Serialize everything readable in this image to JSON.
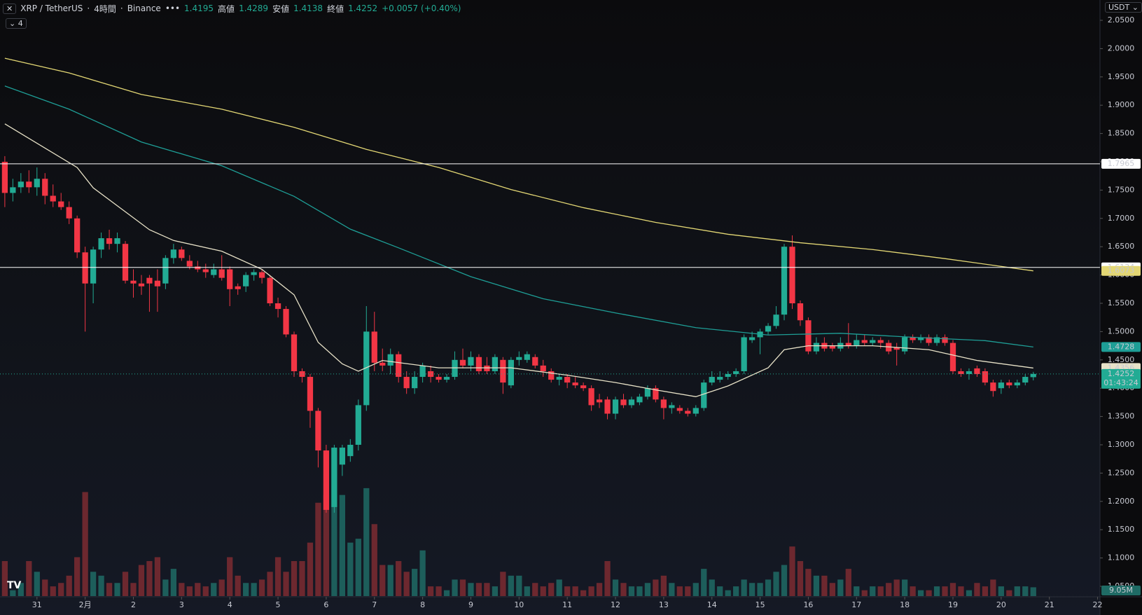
{
  "header": {
    "symbol": "XRP / TetherUS",
    "interval": "4時間",
    "exchange": "Binance",
    "high_label": "高値",
    "low_label": "安値",
    "close_label": "終値",
    "change": "+0.0057 (+0.40%)",
    "indicator_count": "4",
    "currency": "USDT",
    "countdown": "01:43:24",
    "last_volume_label": "9.05M"
  },
  "chart_data": {
    "type": "candlestick",
    "up_color": "#22ab94",
    "down_color": "#f23645",
    "volume_up_color": "#1f6b65",
    "volume_down_color": "#7d2b31",
    "ylim": [
      1.05,
      2.05
    ],
    "yticks": [
      {
        "value": 2.05,
        "label": "2.0500"
      },
      {
        "value": 2.0,
        "label": "2.0000"
      },
      {
        "value": 1.95,
        "label": "1.9500"
      },
      {
        "value": 1.9,
        "label": "1.9000"
      },
      {
        "value": 1.85,
        "label": "1.8500"
      },
      {
        "value": 1.8,
        "label": "1.8000"
      },
      {
        "value": 1.75,
        "label": "1.7500"
      },
      {
        "value": 1.7,
        "label": "1.7000"
      },
      {
        "value": 1.65,
        "label": "1.6500"
      },
      {
        "value": 1.6,
        "label": "1.6000"
      },
      {
        "value": 1.55,
        "label": "1.5500"
      },
      {
        "value": 1.5,
        "label": "1.5000"
      },
      {
        "value": 1.45,
        "label": "1.4500"
      },
      {
        "value": 1.4,
        "label": "1.4000"
      },
      {
        "value": 1.35,
        "label": "1.3500"
      },
      {
        "value": 1.3,
        "label": "1.3000"
      },
      {
        "value": 1.25,
        "label": "1.2500"
      },
      {
        "value": 1.2,
        "label": "1.2000"
      },
      {
        "value": 1.15,
        "label": "1.1500"
      },
      {
        "value": 1.1,
        "label": "1.1000"
      },
      {
        "value": 1.05,
        "label": "1.0500"
      }
    ],
    "xlim": [
      -0.6,
      136.3
    ],
    "xticks": [
      {
        "value": 4,
        "label": "31"
      },
      {
        "value": 10,
        "label": "2月"
      },
      {
        "value": 16,
        "label": "2"
      },
      {
        "value": 22,
        "label": "3"
      },
      {
        "value": 28,
        "label": "4"
      },
      {
        "value": 34,
        "label": "5"
      },
      {
        "value": 40,
        "label": "6"
      },
      {
        "value": 46,
        "label": "7"
      },
      {
        "value": 52,
        "label": "8"
      },
      {
        "value": 58,
        "label": "9"
      },
      {
        "value": 64,
        "label": "10"
      },
      {
        "value": 70,
        "label": "11"
      },
      {
        "value": 76,
        "label": "12"
      },
      {
        "value": 82,
        "label": "13"
      },
      {
        "value": 88,
        "label": "14"
      },
      {
        "value": 94,
        "label": "15"
      },
      {
        "value": 100,
        "label": "16"
      },
      {
        "value": 106,
        "label": "17"
      },
      {
        "value": 112,
        "label": "18"
      },
      {
        "value": 118,
        "label": "19"
      },
      {
        "value": 124,
        "label": "20"
      },
      {
        "value": 130,
        "label": "21"
      },
      {
        "value": 136,
        "label": "22"
      }
    ],
    "grid": false,
    "candles": [
      [
        1.8,
        1.81,
        1.72,
        1.745
      ],
      [
        1.745,
        1.77,
        1.73,
        1.755
      ],
      [
        1.755,
        1.78,
        1.745,
        1.765
      ],
      [
        1.765,
        1.785,
        1.745,
        1.755
      ],
      [
        1.755,
        1.79,
        1.74,
        1.77
      ],
      [
        1.77,
        1.78,
        1.725,
        1.74
      ],
      [
        1.74,
        1.76,
        1.72,
        1.73
      ],
      [
        1.73,
        1.745,
        1.715,
        1.72
      ],
      [
        1.72,
        1.73,
        1.69,
        1.7
      ],
      [
        1.7,
        1.705,
        1.63,
        1.64
      ],
      [
        1.64,
        1.65,
        1.5,
        1.585
      ],
      [
        1.585,
        1.65,
        1.55,
        1.645
      ],
      [
        1.645,
        1.675,
        1.63,
        1.665
      ],
      [
        1.665,
        1.68,
        1.645,
        1.655
      ],
      [
        1.655,
        1.675,
        1.64,
        1.665
      ],
      [
        1.655,
        1.66,
        1.585,
        1.59
      ],
      [
        1.59,
        1.61,
        1.56,
        1.585
      ],
      [
        1.585,
        1.6,
        1.565,
        1.58
      ],
      [
        1.595,
        1.6,
        1.535,
        1.585
      ],
      [
        1.59,
        1.61,
        1.535,
        1.58
      ],
      [
        1.585,
        1.635,
        1.575,
        1.63
      ],
      [
        1.63,
        1.655,
        1.62,
        1.645
      ],
      [
        1.645,
        1.65,
        1.625,
        1.63
      ],
      [
        1.625,
        1.635,
        1.61,
        1.615
      ],
      [
        1.615,
        1.625,
        1.605,
        1.61
      ],
      [
        1.61,
        1.62,
        1.595,
        1.605
      ],
      [
        1.6,
        1.62,
        1.595,
        1.61
      ],
      [
        1.61,
        1.635,
        1.59,
        1.595
      ],
      [
        1.61,
        1.615,
        1.545,
        1.575
      ],
      [
        1.58,
        1.585,
        1.565,
        1.575
      ],
      [
        1.58,
        1.605,
        1.57,
        1.6
      ],
      [
        1.6,
        1.61,
        1.59,
        1.605
      ],
      [
        1.605,
        1.61,
        1.585,
        1.595
      ],
      [
        1.595,
        1.6,
        1.545,
        1.55
      ],
      [
        1.55,
        1.56,
        1.525,
        1.54
      ],
      [
        1.54,
        1.545,
        1.49,
        1.495
      ],
      [
        1.495,
        1.5,
        1.42,
        1.43
      ],
      [
        1.43,
        1.435,
        1.41,
        1.42
      ],
      [
        1.42,
        1.425,
        1.33,
        1.36
      ],
      [
        1.36,
        1.365,
        1.26,
        1.29
      ],
      [
        1.29,
        1.3,
        1.18,
        1.185
      ],
      [
        1.19,
        1.3,
        1.18,
        1.295
      ],
      [
        1.265,
        1.3,
        1.245,
        1.295
      ],
      [
        1.28,
        1.31,
        1.27,
        1.3
      ],
      [
        1.3,
        1.38,
        1.29,
        1.37
      ],
      [
        1.37,
        1.545,
        1.36,
        1.5
      ],
      [
        1.5,
        1.535,
        1.43,
        1.445
      ],
      [
        1.445,
        1.47,
        1.43,
        1.44
      ],
      [
        1.44,
        1.47,
        1.425,
        1.46
      ],
      [
        1.46,
        1.465,
        1.41,
        1.42
      ],
      [
        1.42,
        1.43,
        1.39,
        1.4
      ],
      [
        1.4,
        1.43,
        1.39,
        1.42
      ],
      [
        1.42,
        1.445,
        1.41,
        1.44
      ],
      [
        1.43,
        1.44,
        1.41,
        1.42
      ],
      [
        1.42,
        1.425,
        1.41,
        1.415
      ],
      [
        1.415,
        1.425,
        1.41,
        1.42
      ],
      [
        1.42,
        1.465,
        1.415,
        1.45
      ],
      [
        1.45,
        1.47,
        1.435,
        1.44
      ],
      [
        1.44,
        1.465,
        1.43,
        1.455
      ],
      [
        1.455,
        1.46,
        1.425,
        1.43
      ],
      [
        1.44,
        1.455,
        1.425,
        1.43
      ],
      [
        1.43,
        1.46,
        1.425,
        1.455
      ],
      [
        1.45,
        1.455,
        1.39,
        1.41
      ],
      [
        1.405,
        1.455,
        1.4,
        1.45
      ],
      [
        1.45,
        1.465,
        1.44,
        1.455
      ],
      [
        1.45,
        1.465,
        1.445,
        1.46
      ],
      [
        1.455,
        1.46,
        1.435,
        1.44
      ],
      [
        1.44,
        1.45,
        1.42,
        1.43
      ],
      [
        1.43,
        1.435,
        1.41,
        1.415
      ],
      [
        1.415,
        1.425,
        1.405,
        1.42
      ],
      [
        1.42,
        1.425,
        1.4,
        1.41
      ],
      [
        1.41,
        1.42,
        1.4,
        1.405
      ],
      [
        1.405,
        1.41,
        1.395,
        1.4
      ],
      [
        1.4,
        1.405,
        1.36,
        1.37
      ],
      [
        1.38,
        1.39,
        1.365,
        1.375
      ],
      [
        1.38,
        1.385,
        1.345,
        1.355
      ],
      [
        1.355,
        1.385,
        1.345,
        1.38
      ],
      [
        1.38,
        1.39,
        1.365,
        1.37
      ],
      [
        1.37,
        1.385,
        1.365,
        1.38
      ],
      [
        1.375,
        1.39,
        1.37,
        1.385
      ],
      [
        1.385,
        1.405,
        1.38,
        1.4
      ],
      [
        1.4,
        1.405,
        1.375,
        1.38
      ],
      [
        1.38,
        1.385,
        1.345,
        1.365
      ],
      [
        1.365,
        1.375,
        1.355,
        1.37
      ],
      [
        1.365,
        1.37,
        1.355,
        1.36
      ],
      [
        1.36,
        1.365,
        1.35,
        1.355
      ],
      [
        1.355,
        1.37,
        1.35,
        1.365
      ],
      [
        1.365,
        1.415,
        1.36,
        1.41
      ],
      [
        1.41,
        1.43,
        1.405,
        1.42
      ],
      [
        1.415,
        1.43,
        1.41,
        1.42
      ],
      [
        1.42,
        1.43,
        1.415,
        1.425
      ],
      [
        1.425,
        1.435,
        1.42,
        1.43
      ],
      [
        1.43,
        1.495,
        1.425,
        1.49
      ],
      [
        1.485,
        1.5,
        1.48,
        1.49
      ],
      [
        1.49,
        1.505,
        1.46,
        1.5
      ],
      [
        1.5,
        1.515,
        1.495,
        1.51
      ],
      [
        1.51,
        1.545,
        1.505,
        1.53
      ],
      [
        1.53,
        1.655,
        1.52,
        1.65
      ],
      [
        1.65,
        1.67,
        1.54,
        1.55
      ],
      [
        1.55,
        1.555,
        1.51,
        1.52
      ],
      [
        1.52,
        1.525,
        1.46,
        1.465
      ],
      [
        1.465,
        1.49,
        1.46,
        1.48
      ],
      [
        1.48,
        1.49,
        1.465,
        1.47
      ],
      [
        1.475,
        1.48,
        1.465,
        1.47
      ],
      [
        1.47,
        1.49,
        1.465,
        1.48
      ],
      [
        1.48,
        1.515,
        1.47,
        1.475
      ],
      [
        1.475,
        1.495,
        1.47,
        1.485
      ],
      [
        1.485,
        1.495,
        1.475,
        1.48
      ],
      [
        1.48,
        1.49,
        1.475,
        1.485
      ],
      [
        1.485,
        1.49,
        1.47,
        1.48
      ],
      [
        1.48,
        1.485,
        1.46,
        1.465
      ],
      [
        1.472,
        1.48,
        1.44,
        1.468
      ],
      [
        1.465,
        1.495,
        1.46,
        1.49
      ],
      [
        1.49,
        1.495,
        1.48,
        1.485
      ],
      [
        1.485,
        1.495,
        1.48,
        1.49
      ],
      [
        1.49,
        1.495,
        1.475,
        1.48
      ],
      [
        1.48,
        1.495,
        1.475,
        1.49
      ],
      [
        1.49,
        1.495,
        1.475,
        1.48
      ],
      [
        1.48,
        1.485,
        1.425,
        1.43
      ],
      [
        1.43,
        1.435,
        1.42,
        1.425
      ],
      [
        1.425,
        1.435,
        1.415,
        1.43
      ],
      [
        1.435,
        1.44,
        1.42,
        1.425
      ],
      [
        1.43,
        1.435,
        1.405,
        1.41
      ],
      [
        1.41,
        1.415,
        1.385,
        1.395
      ],
      [
        1.4,
        1.415,
        1.39,
        1.41
      ],
      [
        1.41,
        1.415,
        1.4,
        1.405
      ],
      [
        1.405,
        1.415,
        1.4,
        1.41
      ],
      [
        1.41,
        1.425,
        1.405,
        1.42
      ],
      [
        1.4195,
        1.4289,
        1.4138,
        1.4252
      ]
    ],
    "volume": [
      36,
      6,
      13.5,
      36,
      25,
      17,
      10,
      13.5,
      21,
      40,
      107,
      25,
      21,
      13.5,
      13.5,
      25,
      13.5,
      32,
      36,
      40,
      17,
      28,
      13.5,
      10,
      13.5,
      10,
      13.5,
      17,
      40,
      21,
      13.5,
      13.5,
      17,
      25,
      40,
      25,
      36,
      36,
      55,
      96,
      104,
      152,
      104,
      55,
      59,
      111,
      74,
      32,
      32,
      36,
      25,
      28,
      47,
      10,
      10,
      6,
      17,
      17,
      13.5,
      13.5,
      13.5,
      10,
      25,
      21,
      21,
      10,
      13.5,
      10,
      13.5,
      17,
      10,
      10,
      6,
      10,
      13.5,
      36,
      17,
      13.5,
      10,
      10,
      13.5,
      17,
      21,
      13.5,
      10,
      10,
      13.5,
      28,
      17,
      10,
      6,
      10,
      17,
      13.5,
      13.5,
      17,
      25,
      32,
      51,
      36,
      28,
      21,
      21,
      13.5,
      17,
      28,
      10,
      6,
      10,
      10,
      13.5,
      17,
      17,
      10,
      6,
      6,
      10,
      10,
      13.5,
      10,
      6,
      13.5,
      10,
      17,
      10,
      6,
      10,
      10,
      9.05
    ],
    "moving_averages": [
      {
        "color": "#e8e2c8",
        "x": [
          0,
          9,
          11,
          18,
          21,
          27,
          32,
          36,
          39,
          42,
          44,
          47,
          54,
          63,
          70,
          76,
          81,
          86,
          90,
          95,
          97,
          100,
          108,
          115,
          121,
          128
        ],
        "values": [
          1.867,
          1.79,
          1.754,
          1.68,
          1.661,
          1.642,
          1.61,
          1.565,
          1.481,
          1.443,
          1.43,
          1.449,
          1.436,
          1.436,
          1.423,
          1.41,
          1.397,
          1.385,
          1.404,
          1.436,
          1.468,
          1.475,
          1.475,
          1.468,
          1.449,
          1.4356
        ],
        "badge_text_color": "#000000"
      },
      {
        "color": "#1e9e96",
        "x": [
          0,
          8,
          17,
          27,
          36,
          43,
          49,
          58,
          67,
          76,
          86,
          95,
          104,
          113,
          122,
          128
        ],
        "values": [
          1.934,
          1.893,
          1.835,
          1.793,
          1.739,
          1.681,
          1.648,
          1.597,
          1.558,
          1.533,
          1.507,
          1.494,
          1.497,
          1.49,
          1.484,
          1.4728
        ],
        "badge_text_color": "#0b2a28"
      },
      {
        "color": "#e3d774",
        "x": [
          0,
          8,
          17,
          27,
          36,
          45,
          54,
          63,
          72,
          81,
          90,
          99,
          108,
          117,
          128
        ],
        "values": [
          1.983,
          1.957,
          1.919,
          1.893,
          1.861,
          1.822,
          1.79,
          1.751,
          1.719,
          1.693,
          1.672,
          1.657,
          1.645,
          1.629,
          1.6073
        ],
        "badge_text_color": "#000000"
      }
    ],
    "hlines": [
      1.7965,
      1.6134
    ],
    "hline_color": "#ffffff"
  }
}
